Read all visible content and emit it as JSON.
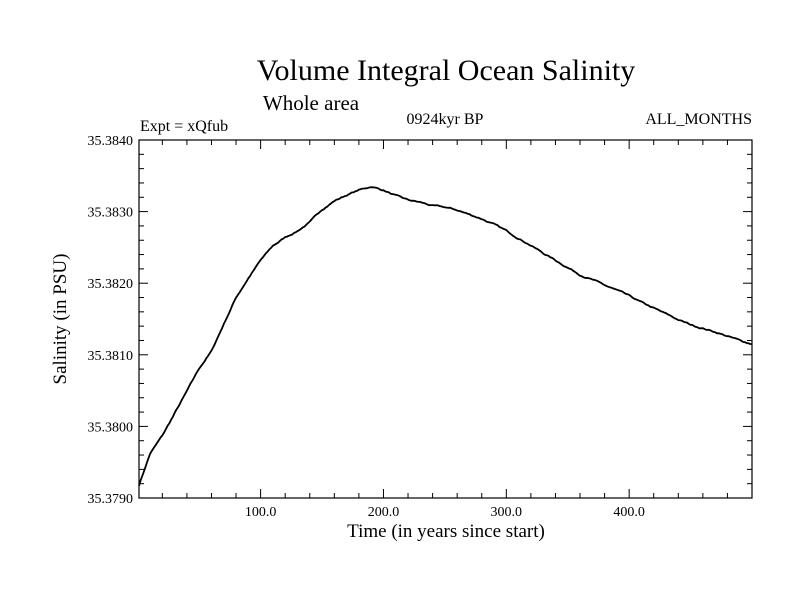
{
  "chart_data": {
    "type": "line",
    "title": "Volume Integral Ocean Salinity",
    "subtitle": "Whole area",
    "experiment": "Expt = xQfub",
    "period": "0924kyr BP",
    "months": "ALL_MONTHS",
    "xlabel": "Time (in years since start)",
    "ylabel": "Salinity (in PSU)",
    "xlim": [
      1,
      500
    ],
    "ylim": [
      35.379,
      35.384
    ],
    "x_ticks": [
      100,
      200,
      300,
      400
    ],
    "x_tick_labels": [
      "100.0",
      "200.0",
      "300.0",
      "400.0"
    ],
    "y_ticks": [
      35.379,
      35.38,
      35.381,
      35.382,
      35.383,
      35.384
    ],
    "y_tick_labels": [
      "35.3790",
      "35.3800",
      "35.3810",
      "35.3820",
      "35.3830",
      "35.3840"
    ],
    "series": [
      {
        "name": "Salinity",
        "x": [
          1,
          10,
          20,
          30,
          40,
          50,
          60,
          70,
          80,
          90,
          100,
          110,
          120,
          130,
          140,
          150,
          160,
          170,
          180,
          190,
          200,
          210,
          220,
          230,
          240,
          250,
          260,
          270,
          280,
          290,
          300,
          310,
          320,
          330,
          340,
          350,
          360,
          370,
          380,
          390,
          400,
          410,
          420,
          430,
          440,
          450,
          460,
          470,
          480,
          490,
          500
        ],
        "values": [
          35.37918,
          35.37962,
          35.37987,
          35.38018,
          35.38049,
          35.38081,
          35.38105,
          35.38143,
          35.3818,
          35.38207,
          35.38232,
          35.38252,
          35.38264,
          35.38273,
          35.38285,
          35.38303,
          35.38315,
          35.38323,
          35.3833,
          35.38335,
          35.3833,
          35.38322,
          35.38316,
          35.38313,
          35.38308,
          35.38306,
          35.38302,
          35.38296,
          35.3829,
          35.38282,
          35.38273,
          35.38263,
          35.38253,
          35.38242,
          35.38232,
          35.38222,
          35.38212,
          35.38205,
          35.38197,
          35.3819,
          35.38182,
          35.38173,
          35.38165,
          35.38157,
          35.38149,
          35.38142,
          35.38137,
          35.38132,
          35.38126,
          35.3812,
          35.38115
        ]
      }
    ]
  }
}
